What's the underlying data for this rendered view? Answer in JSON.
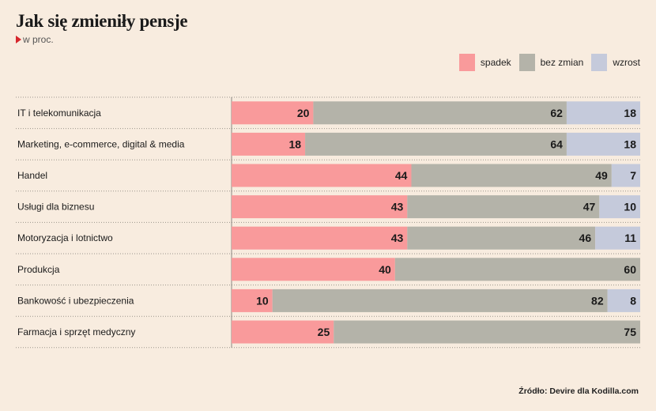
{
  "title": "Jak się zmieniły pensje",
  "subtitle": "w proc.",
  "source": "Źródło: Devire dla Kodilla.com",
  "legend": [
    {
      "label": "spadek",
      "color": "#f99a9b"
    },
    {
      "label": "bez zmian",
      "color": "#b4b3a9"
    },
    {
      "label": "wzrost",
      "color": "#c5cadb"
    }
  ],
  "chart_data": {
    "type": "bar",
    "stacked": true,
    "orientation": "horizontal",
    "categories": [
      "IT i telekomunikacja",
      "Marketing, e-commerce, digital & media",
      "Handel",
      "Usługi dla biznesu",
      "Motoryzacja i lotnictwo",
      "Produkcja",
      "Bankowość i ubezpieczenia",
      "Farmacja i sprzęt medyczny"
    ],
    "series": [
      {
        "name": "spadek",
        "color": "#f99a9b",
        "values": [
          20,
          18,
          44,
          43,
          43,
          40,
          10,
          25
        ]
      },
      {
        "name": "bez zmian",
        "color": "#b4b3a9",
        "values": [
          62,
          64,
          49,
          47,
          46,
          60,
          82,
          75
        ]
      },
      {
        "name": "wzrost",
        "color": "#c5cadb",
        "values": [
          18,
          18,
          7,
          10,
          11,
          0,
          8,
          0
        ]
      }
    ],
    "xlim": [
      0,
      100
    ],
    "grid": false
  }
}
